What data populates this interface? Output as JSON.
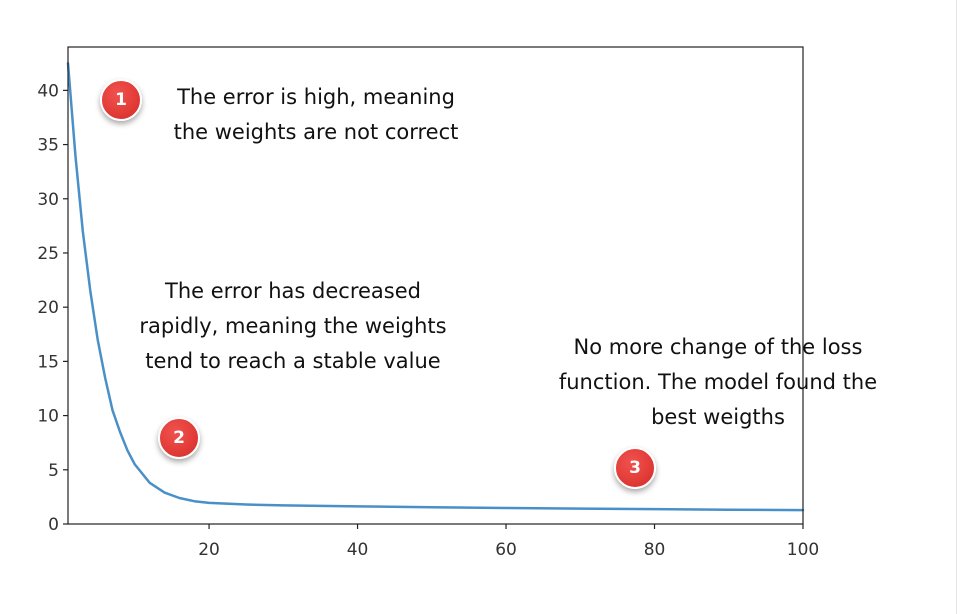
{
  "chart_data": {
    "type": "line",
    "title": "",
    "xlabel": "",
    "ylabel": "",
    "xlim": [
      1,
      100
    ],
    "ylim": [
      0,
      44
    ],
    "xticks": [
      20,
      40,
      60,
      80,
      100
    ],
    "yticks": [
      0,
      5,
      10,
      15,
      20,
      25,
      30,
      35,
      40
    ],
    "grid": false,
    "series": [
      {
        "color": "#4a90c8",
        "x": [
          1,
          2,
          3,
          4,
          5,
          6,
          7,
          8,
          9,
          10,
          12,
          14,
          16,
          18,
          20,
          25,
          30,
          40,
          50,
          60,
          70,
          80,
          90,
          100
        ],
        "y": [
          42.5,
          34.0,
          27.0,
          21.5,
          17.0,
          13.5,
          10.5,
          8.5,
          6.8,
          5.5,
          3.8,
          2.9,
          2.4,
          2.1,
          1.95,
          1.8,
          1.72,
          1.62,
          1.55,
          1.48,
          1.42,
          1.37,
          1.32,
          1.28
        ]
      }
    ],
    "annotations": [
      {
        "badge": "1",
        "lines": [
          "The error is high, meaning",
          "the weights are not correct"
        ]
      },
      {
        "badge": "2",
        "lines": [
          "The error has decreased",
          "rapidly, meaning the weights",
          "tend to reach a stable value"
        ]
      },
      {
        "badge": "3",
        "lines": [
          "No more change of the loss",
          "function. The model found the",
          "best weigths"
        ]
      }
    ]
  }
}
